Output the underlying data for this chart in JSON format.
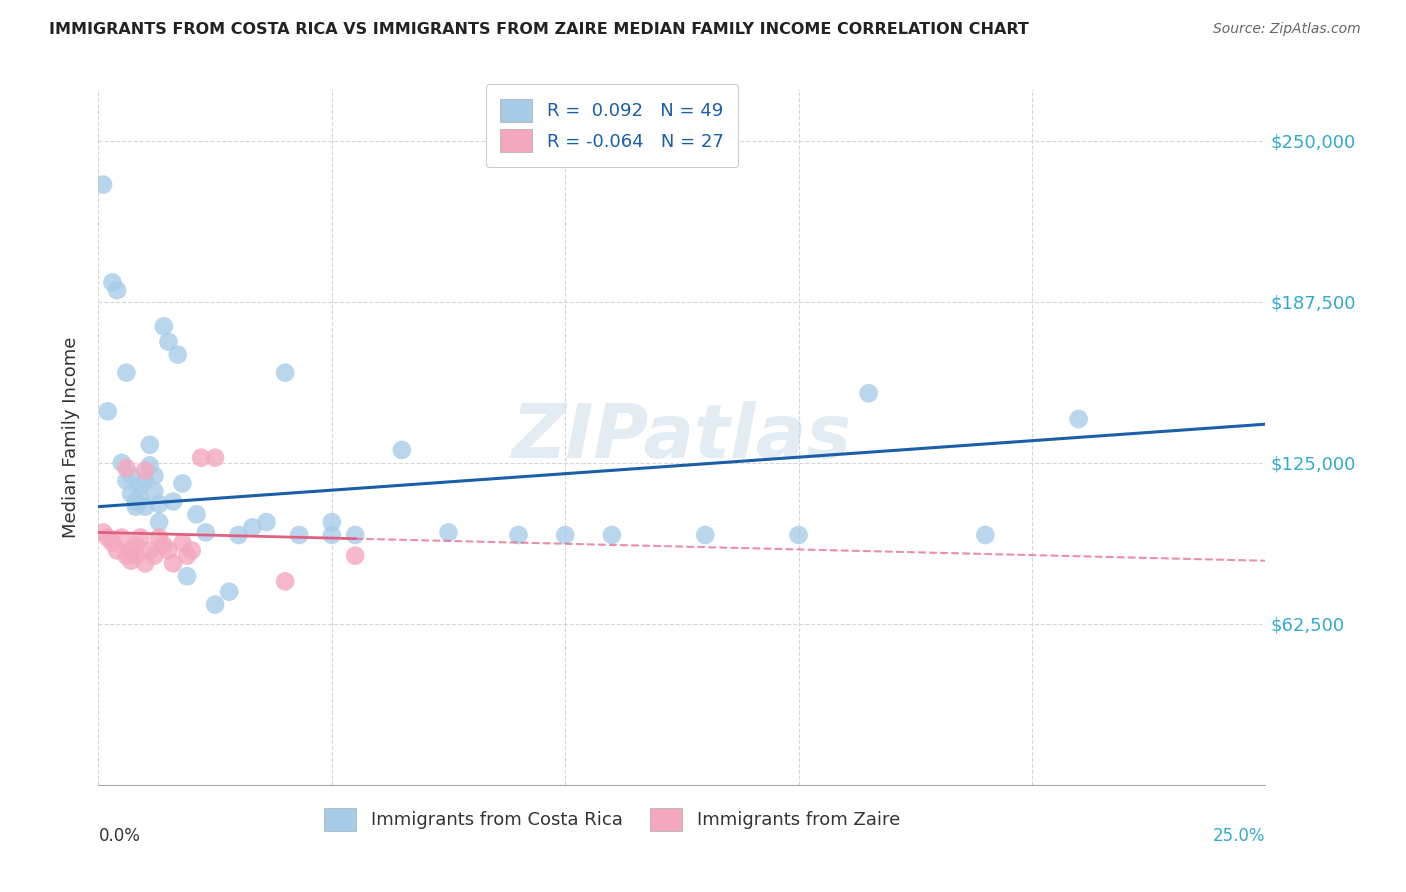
{
  "title": "IMMIGRANTS FROM COSTA RICA VS IMMIGRANTS FROM ZAIRE MEDIAN FAMILY INCOME CORRELATION CHART",
  "source": "Source: ZipAtlas.com",
  "ylabel": "Median Family Income",
  "yticks": [
    0,
    62500,
    125000,
    187500,
    250000
  ],
  "ytick_labels": [
    "",
    "$62,500",
    "$125,000",
    "$187,500",
    "$250,000"
  ],
  "xlim": [
    0.0,
    0.25
  ],
  "ylim": [
    0,
    270000
  ],
  "legend_r1": "R =  0.092   N = 49",
  "legend_r2": "R = -0.064   N = 27",
  "color_cr": "#a8cce8",
  "color_zr": "#f4a8be",
  "trendline_cr_color": "#1a5fa8",
  "trendline_zr_color": "#e06080",
  "watermark": "ZIPatlas",
  "costa_rica_x": [
    0.001,
    0.003,
    0.004,
    0.005,
    0.006,
    0.007,
    0.007,
    0.008,
    0.008,
    0.009,
    0.009,
    0.01,
    0.01,
    0.011,
    0.011,
    0.012,
    0.012,
    0.013,
    0.013,
    0.014,
    0.015,
    0.016,
    0.017,
    0.018,
    0.019,
    0.021,
    0.023,
    0.025,
    0.028,
    0.03,
    0.033,
    0.036,
    0.04,
    0.043,
    0.05,
    0.055,
    0.065,
    0.075,
    0.09,
    0.1,
    0.11,
    0.13,
    0.15,
    0.165,
    0.19,
    0.21,
    0.002,
    0.006,
    0.05
  ],
  "costa_rica_y": [
    233000,
    195000,
    192000,
    125000,
    118000,
    120000,
    113000,
    108000,
    110000,
    116000,
    111000,
    118000,
    108000,
    132000,
    124000,
    114000,
    120000,
    109000,
    102000,
    178000,
    172000,
    110000,
    167000,
    117000,
    81000,
    105000,
    98000,
    70000,
    75000,
    97000,
    100000,
    102000,
    160000,
    97000,
    102000,
    97000,
    130000,
    98000,
    97000,
    97000,
    97000,
    97000,
    97000,
    152000,
    97000,
    142000,
    145000,
    160000,
    97000
  ],
  "zaire_x": [
    0.001,
    0.002,
    0.003,
    0.004,
    0.005,
    0.006,
    0.006,
    0.007,
    0.007,
    0.008,
    0.008,
    0.009,
    0.01,
    0.01,
    0.011,
    0.012,
    0.013,
    0.014,
    0.015,
    0.016,
    0.018,
    0.019,
    0.02,
    0.022,
    0.025,
    0.04,
    0.055
  ],
  "zaire_y": [
    98000,
    96000,
    94000,
    91000,
    96000,
    89000,
    123000,
    91000,
    87000,
    93000,
    89000,
    96000,
    86000,
    122000,
    91000,
    89000,
    96000,
    93000,
    91000,
    86000,
    94000,
    89000,
    91000,
    127000,
    127000,
    79000,
    89000
  ],
  "cr_trend_x0": 0.0,
  "cr_trend_y0": 108000,
  "cr_trend_x1": 0.25,
  "cr_trend_y1": 140000,
  "zr_trend_x0": 0.0,
  "zr_trend_y0": 98000,
  "zr_trend_x1": 0.25,
  "zr_trend_y1": 87000
}
